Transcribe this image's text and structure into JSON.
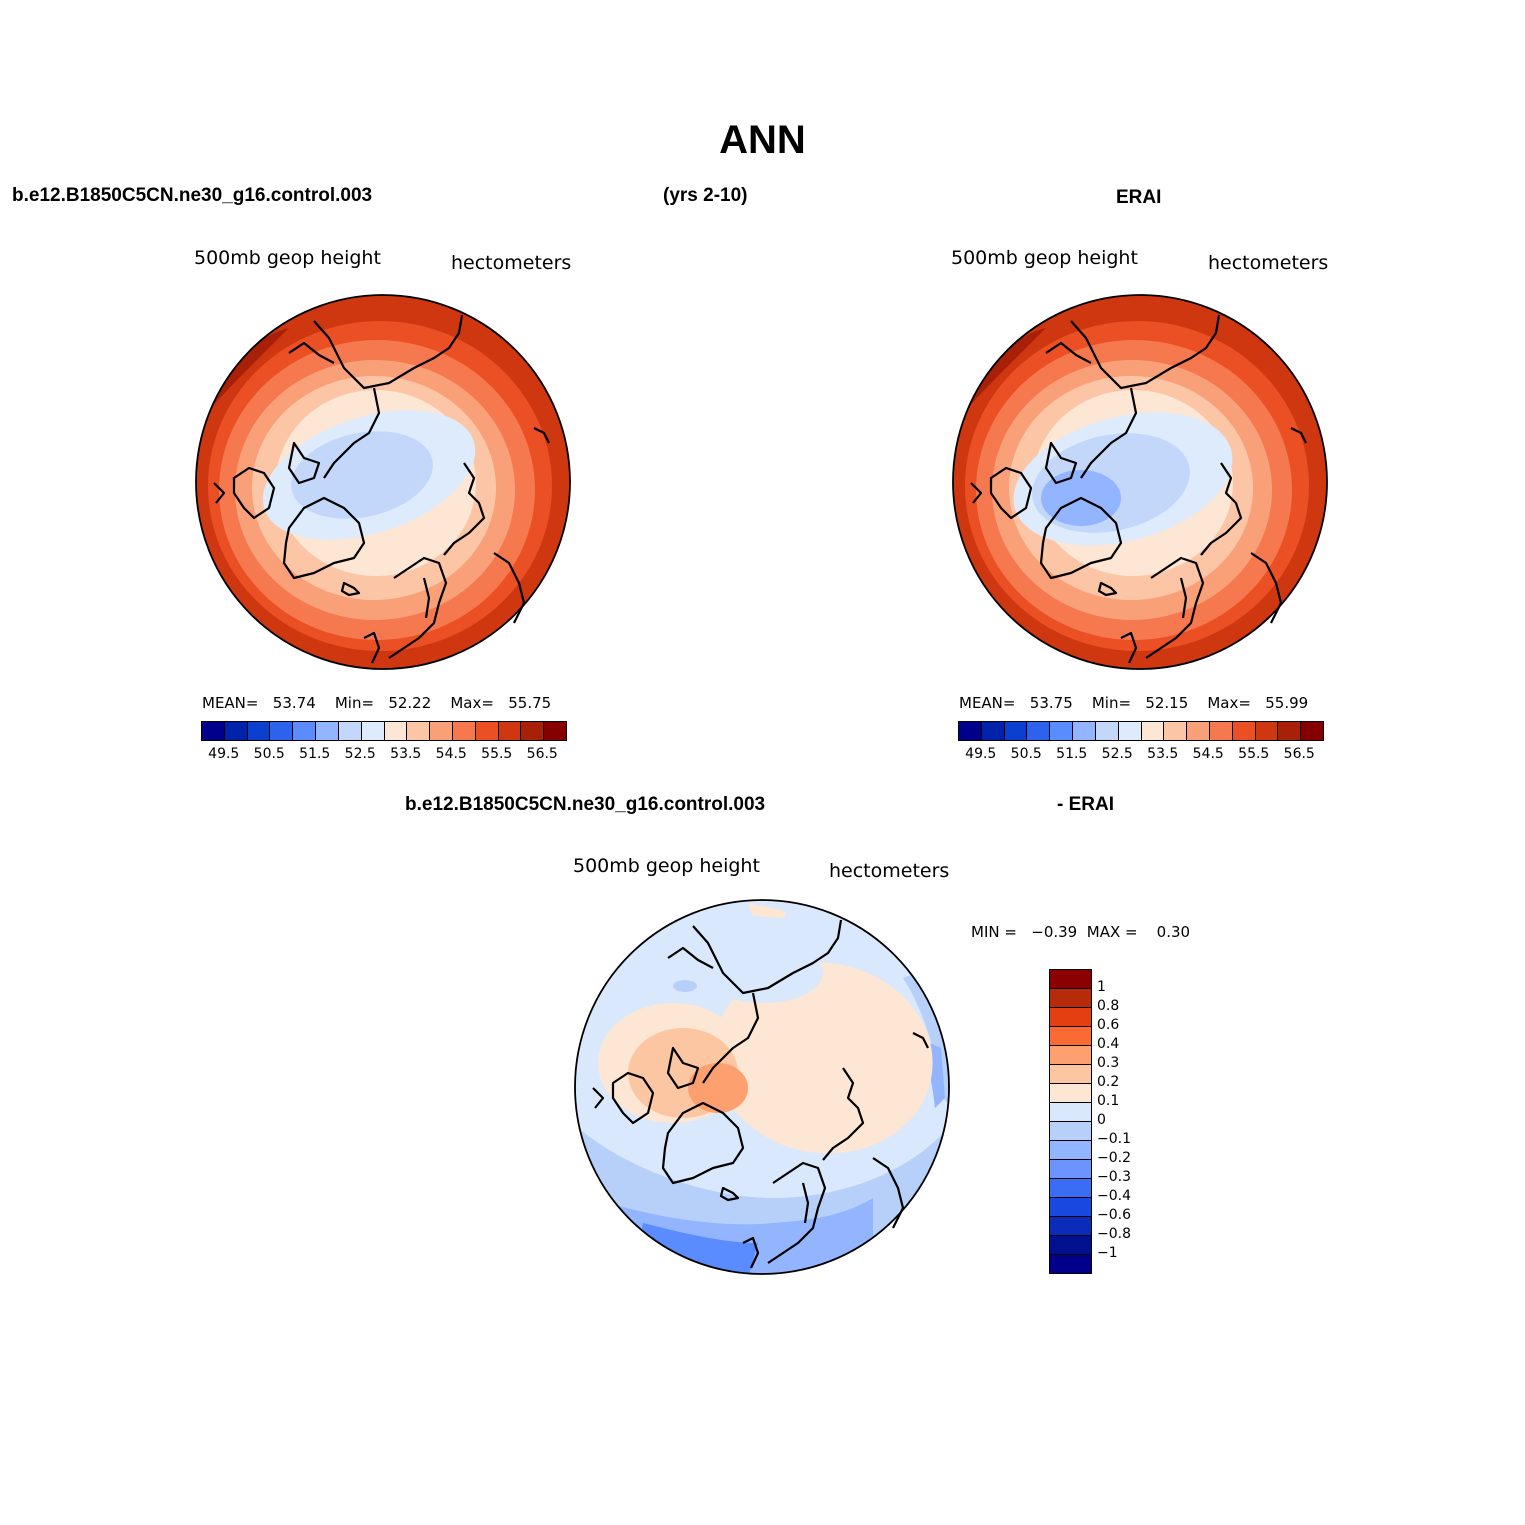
{
  "title": "ANN",
  "header": {
    "case_name": "b.e12.B1850C5CN.ne30_g16.control.003",
    "years": "(yrs 2-10)",
    "obs_name": "ERAI",
    "diff_case": "b.e12.B1850C5CN.ne30_g16.control.003",
    "diff_obs": "- ERAI"
  },
  "panels": [
    {
      "id": "model",
      "variable": "500mb  geop height",
      "units": "hectometers",
      "mean_label": "MEAN=",
      "mean": "53.74",
      "min_label": "Min=",
      "min": "52.22",
      "max_label": "Max=",
      "max": "55.75"
    },
    {
      "id": "obs",
      "variable": "500mb  geop height",
      "units": "hectometers",
      "mean_label": "MEAN=",
      "mean": "53.75",
      "min_label": "Min=",
      "min": "52.15",
      "max_label": "Max=",
      "max": "55.99"
    },
    {
      "id": "diff",
      "variable": "500mb  geop height",
      "units": "hectometers",
      "min_label": "MIN =",
      "min": "−0.39",
      "max_label": "MAX =",
      "max": "0.30"
    }
  ],
  "colorbar_abs": {
    "colors": [
      "#00008b",
      "#0022aa",
      "#0b3fd0",
      "#2d62ee",
      "#5a8cff",
      "#93b5ff",
      "#c3d7fb",
      "#deebfc",
      "#fde6d4",
      "#fcc6a6",
      "#f9a078",
      "#f5784e",
      "#eb4f24",
      "#cf3710",
      "#a82008",
      "#870000"
    ],
    "tick_labels": [
      "49.5",
      "50.5",
      "51.5",
      "52.5",
      "53.5",
      "54.5",
      "55.5",
      "56.5"
    ]
  },
  "colorbar_diff": {
    "colors": [
      "#8b0000",
      "#b72a0a",
      "#e33f10",
      "#fb6a35",
      "#fda070",
      "#fdc6a2",
      "#fde6d4",
      "#d9e8fc",
      "#b7d0fa",
      "#93b5ff",
      "#6b94ff",
      "#3a6cf5",
      "#1848e0",
      "#0a2cb8",
      "#00108e",
      "#00008b"
    ],
    "tick_labels": [
      "1",
      "0.8",
      "0.6",
      "0.4",
      "0.3",
      "0.2",
      "0.1",
      "0",
      "−0.1",
      "−0.2",
      "−0.3",
      "−0.4",
      "−0.6",
      "−0.8",
      "−1"
    ]
  }
}
